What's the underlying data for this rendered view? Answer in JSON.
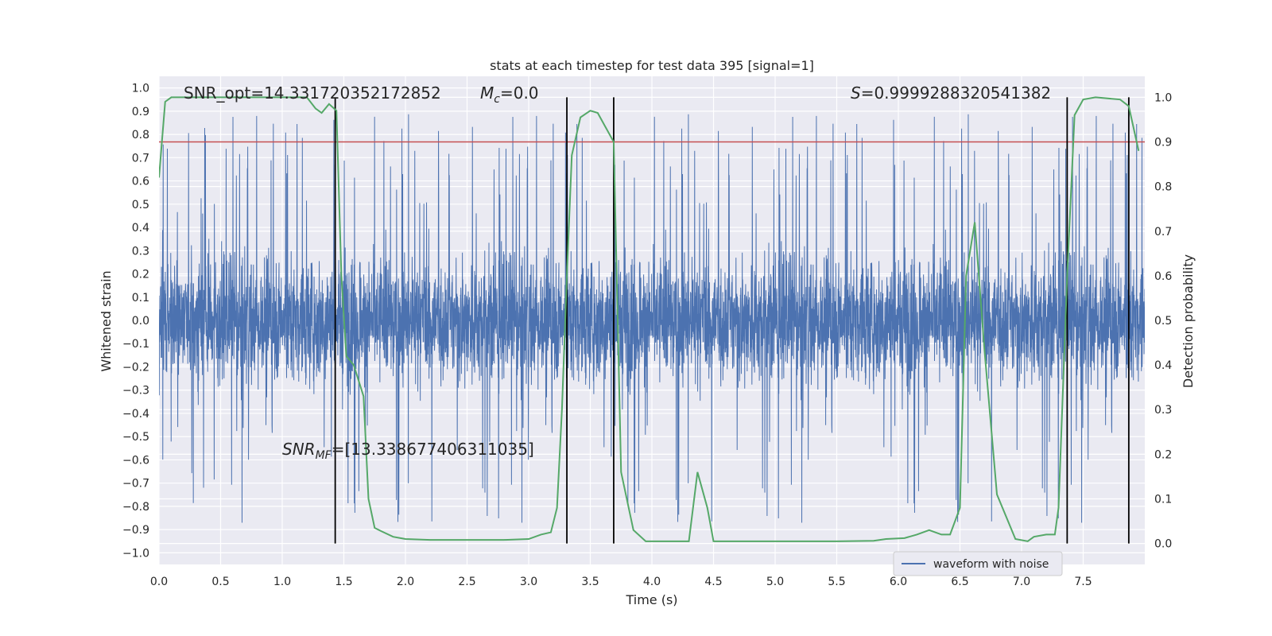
{
  "chart_data": {
    "type": "line",
    "title": "stats at each timestep for test data 395 [signal=1]",
    "xlabel": "Time (s)",
    "ylabel": "Whitened strain",
    "y2label": "Detection probability",
    "xlim": [
      0.0,
      8.0
    ],
    "ylim": [
      -1.05,
      1.05
    ],
    "y2lim": [
      -0.047,
      1.047
    ],
    "x_ticks": [
      0.0,
      0.5,
      1.0,
      1.5,
      2.0,
      2.5,
      3.0,
      3.5,
      4.0,
      4.5,
      5.0,
      5.5,
      6.0,
      6.5,
      7.0,
      7.5
    ],
    "y_ticks": [
      -1.0,
      -0.9,
      -0.8,
      -0.7,
      -0.6,
      -0.5,
      -0.4,
      -0.3,
      -0.2,
      -0.1,
      0.0,
      0.1,
      0.2,
      0.3,
      0.4,
      0.5,
      0.6,
      0.7,
      0.8,
      0.9,
      1.0
    ],
    "y2_ticks": [
      0.0,
      0.1,
      0.2,
      0.3,
      0.4,
      0.5,
      0.6,
      0.7,
      0.8,
      0.9,
      1.0
    ],
    "x_tick_labels": [
      "0.0",
      "0.5",
      "1.0",
      "1.5",
      "2.0",
      "2.5",
      "3.0",
      "3.5",
      "4.0",
      "4.5",
      "5.0",
      "5.5",
      "6.0",
      "6.5",
      "7.0",
      "7.5"
    ],
    "y_tick_labels": [
      "−1.0",
      "−0.9",
      "−0.8",
      "−0.7",
      "−0.6",
      "−0.5",
      "−0.4",
      "−0.3",
      "−0.2",
      "−0.1",
      "0.0",
      "0.1",
      "0.2",
      "0.3",
      "0.4",
      "0.5",
      "0.6",
      "0.7",
      "0.8",
      "0.9",
      "1.0"
    ],
    "y2_tick_labels": [
      "0.0",
      "0.1",
      "0.2",
      "0.3",
      "0.4",
      "0.5",
      "0.6",
      "0.7",
      "0.8",
      "0.9",
      "1.0"
    ],
    "grid": true,
    "legend": {
      "placement": "lower-right",
      "entries": [
        "waveform with noise"
      ]
    },
    "annotations": {
      "snr_opt": "SNR_opt=14.331720352172852",
      "mc_symbol": "M",
      "mc_sub": "c",
      "mc_value": "=0.0",
      "s_symbol": "S",
      "s_value": "=0.9999288320541382",
      "snr_mf_symbol": "SNR",
      "snr_mf_sub": "MF",
      "snr_mf_value": "=[13.338677406311035]"
    },
    "threshold_probability": 0.9,
    "detection_boundaries": [
      1.43,
      3.31,
      3.69,
      7.37,
      7.87
    ],
    "series": [
      {
        "name": "waveform with noise",
        "color": "#4c72b0",
        "axis": "left",
        "description_points": "dense noise strain trace",
        "envelope_x": [
          0.0,
          8.0
        ],
        "core_amplitude": 0.4,
        "peak_amplitude": 1.0
      },
      {
        "color": "#55a868",
        "axis": "right",
        "x": [
          0.0,
          0.05,
          0.1,
          0.2,
          0.5,
          0.8,
          1.0,
          1.2,
          1.27,
          1.32,
          1.38,
          1.44,
          1.48,
          1.52,
          1.58,
          1.66,
          1.7,
          1.75,
          1.8,
          1.9,
          2.0,
          2.2,
          2.5,
          2.8,
          3.0,
          3.1,
          3.18,
          3.23,
          3.27,
          3.31,
          3.35,
          3.42,
          3.5,
          3.56,
          3.62,
          3.69,
          3.75,
          3.85,
          3.95,
          4.1,
          4.3,
          4.37,
          4.45,
          4.5,
          4.7,
          5.0,
          5.5,
          5.8,
          5.9,
          6.05,
          6.15,
          6.25,
          6.35,
          6.42,
          6.5,
          6.55,
          6.62,
          6.7,
          6.8,
          6.95,
          7.05,
          7.1,
          7.2,
          7.27,
          7.3,
          7.37,
          7.43,
          7.5,
          7.6,
          7.8,
          7.87,
          7.95
        ],
        "y": [
          0.82,
          0.99,
          1.0,
          1.0,
          1.0,
          1.0,
          1.0,
          1.0,
          0.975,
          0.965,
          0.985,
          0.97,
          0.6,
          0.42,
          0.4,
          0.33,
          0.1,
          0.035,
          0.028,
          0.015,
          0.01,
          0.008,
          0.008,
          0.008,
          0.01,
          0.02,
          0.025,
          0.08,
          0.3,
          0.6,
          0.87,
          0.955,
          0.97,
          0.965,
          0.935,
          0.9,
          0.16,
          0.03,
          0.005,
          0.005,
          0.005,
          0.16,
          0.08,
          0.005,
          0.005,
          0.005,
          0.005,
          0.006,
          0.01,
          0.012,
          0.02,
          0.03,
          0.02,
          0.02,
          0.08,
          0.6,
          0.72,
          0.43,
          0.11,
          0.01,
          0.005,
          0.015,
          0.02,
          0.02,
          0.08,
          0.6,
          0.96,
          0.995,
          1.0,
          0.995,
          0.98,
          0.88
        ]
      }
    ]
  }
}
